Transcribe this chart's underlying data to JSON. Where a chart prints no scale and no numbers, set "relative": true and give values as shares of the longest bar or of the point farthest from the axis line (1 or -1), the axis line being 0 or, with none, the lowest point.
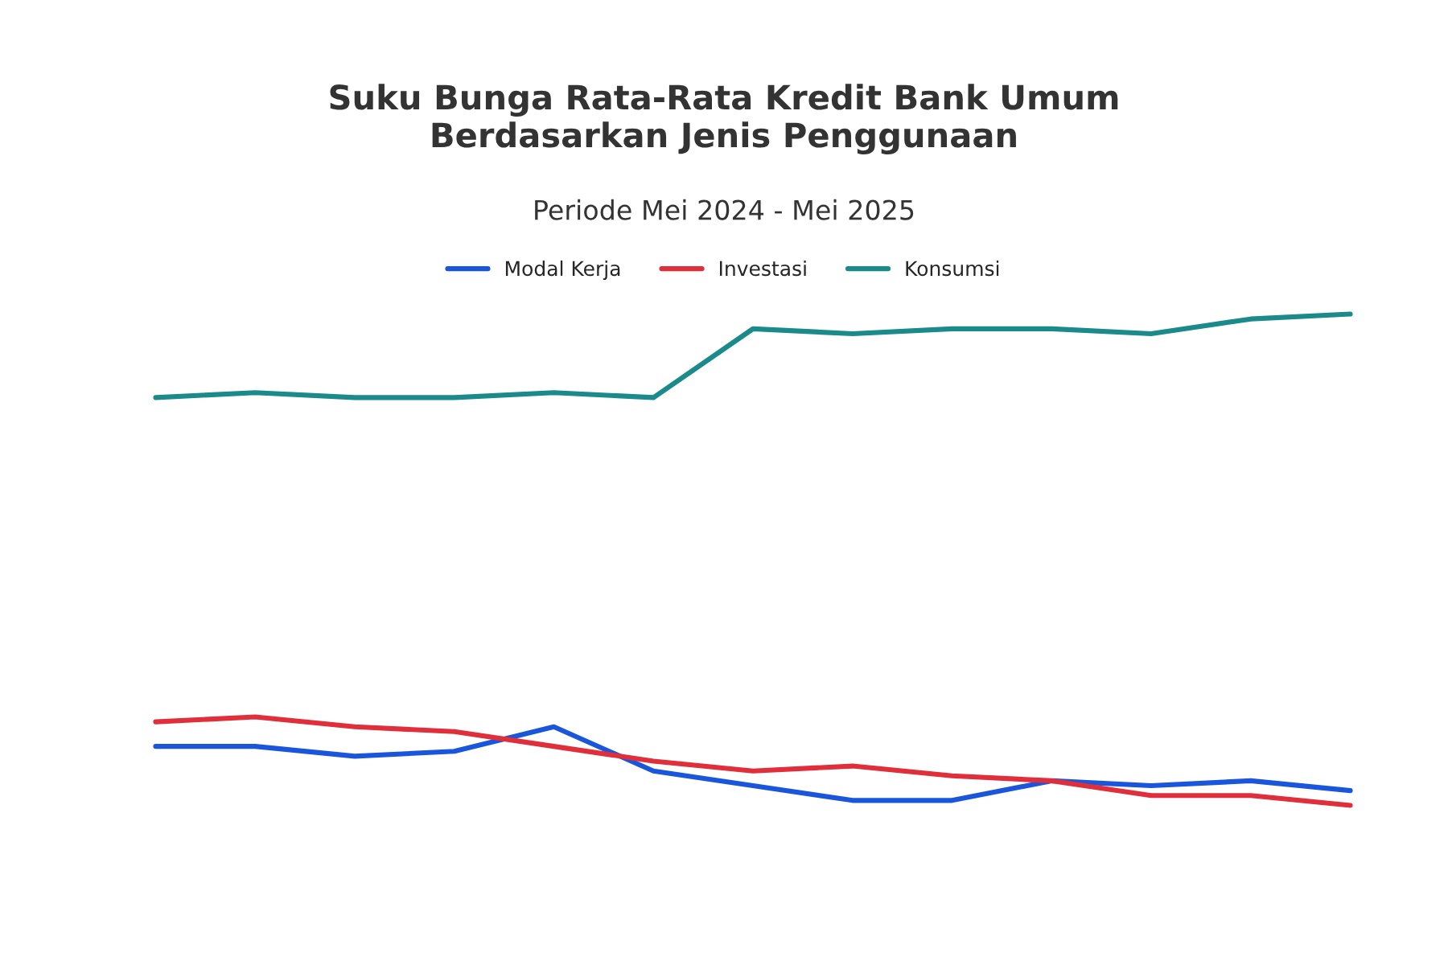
{
  "chart_data": {
    "type": "line",
    "title": "Suku Bunga Rata-Rata Kredit Bank Umum\nBerdasarkan Jenis Penggunaan",
    "subtitle": "Periode Mei 2024 - Mei 2025",
    "categories": [
      null,
      null,
      null,
      null,
      null,
      null,
      null,
      null,
      null,
      null,
      null,
      null,
      null
    ],
    "relative": true,
    "legend": "top",
    "marker": "none",
    "line_style": "solid",
    "series": [
      {
        "name": "Modal Kerja",
        "color": "#1a56db",
        "values": [
          0.12,
          0.12,
          0.1,
          0.11,
          0.16,
          0.07,
          0.04,
          0.01,
          0.01,
          0.05,
          0.04,
          0.05,
          0.03
        ]
      },
      {
        "name": "Investasi",
        "color": "#e02f3a",
        "values": [
          0.17,
          0.18,
          0.16,
          0.15,
          0.12,
          0.09,
          0.07,
          0.08,
          0.06,
          0.05,
          0.02,
          0.02,
          0.0
        ]
      },
      {
        "name": "Konsumsi",
        "color": "#1a8a8a",
        "values": [
          0.83,
          0.84,
          0.83,
          0.83,
          0.84,
          0.83,
          0.97,
          0.96,
          0.97,
          0.97,
          0.96,
          0.99,
          1.0
        ]
      }
    ]
  }
}
